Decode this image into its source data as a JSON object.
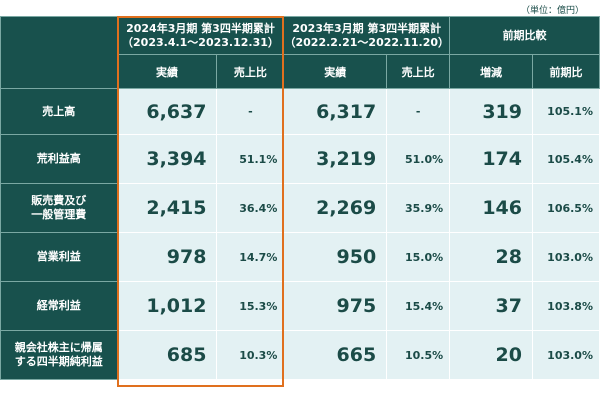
{
  "unit_note": "（単位：億円）",
  "header": {
    "period_current": "2024年3月期 第3四半期累計",
    "period_current_range": "（2023.4.1～2023.12.31）",
    "period_prev": "2023年3月期 第3四半期累計",
    "period_prev_range": "（2022.2.21～2022.11.20）",
    "comparison": "前期比較",
    "col_actual": "実績",
    "col_ratio": "売上比",
    "col_diff": "増減",
    "col_yoy": "前期比"
  },
  "rows": [
    {
      "label": [
        "売上高"
      ],
      "cur": "6,637",
      "cur_ratio": "-",
      "prev": "6,317",
      "prev_ratio": "-",
      "diff": "319",
      "yoy": "105.1%"
    },
    {
      "label": [
        "荒利益高"
      ],
      "cur": "3,394",
      "cur_ratio": "51.1%",
      "prev": "3,219",
      "prev_ratio": "51.0%",
      "diff": "174",
      "yoy": "105.4%"
    },
    {
      "label": [
        "販売費及び",
        "一般管理費"
      ],
      "cur": "2,415",
      "cur_ratio": "36.4%",
      "prev": "2,269",
      "prev_ratio": "35.9%",
      "diff": "146",
      "yoy": "106.5%"
    },
    {
      "label": [
        "営業利益"
      ],
      "cur": "978",
      "cur_ratio": "14.7%",
      "prev": "950",
      "prev_ratio": "15.0%",
      "diff": "28",
      "yoy": "103.0%"
    },
    {
      "label": [
        "経常利益"
      ],
      "cur": "1,012",
      "cur_ratio": "15.3%",
      "prev": "975",
      "prev_ratio": "15.4%",
      "diff": "37",
      "yoy": "103.8%"
    },
    {
      "label": [
        "親会社株主に帰属",
        "する四半期純利益"
      ],
      "cur": "685",
      "cur_ratio": "10.3%",
      "prev": "665",
      "prev_ratio": "10.5%",
      "diff": "20",
      "yoy": "103.0%"
    }
  ],
  "colors": {
    "header_bg": "#18514d",
    "cell_bg": "#e3f1f3",
    "text": "#1b4b47",
    "highlight": "#e0701e"
  }
}
